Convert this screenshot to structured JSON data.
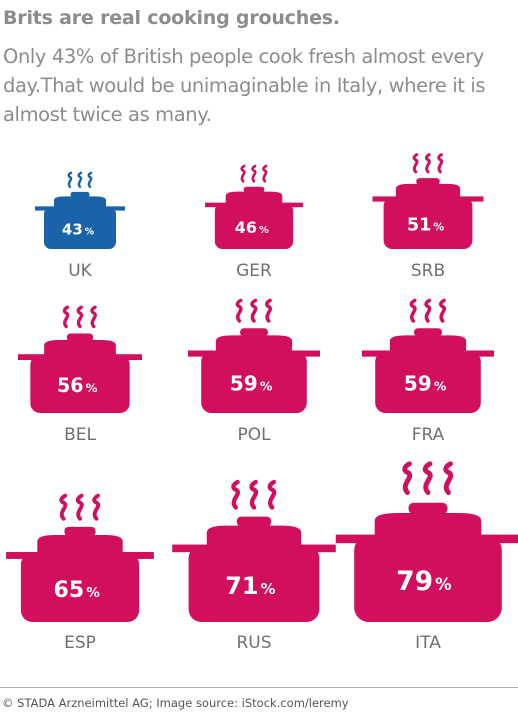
{
  "title": "Brits are real cooking grouches.",
  "subtitle": "Only 43% of British people cook fresh almost every day.That would be unimaginable in Italy, where it is almost twice as many.",
  "footer": "© STADA Arzneimittel AG; Image source: iStock.com/leremy",
  "colors": {
    "highlight": "#1a63a8",
    "default": "#d20f5f",
    "text": "#8c8c8c",
    "label": "#707070"
  },
  "icon": "steaming-cooking-pot-icon",
  "chart_data": {
    "type": "pictogram",
    "title": "Brits are real cooking grouches.",
    "unit": "%",
    "categories": [
      "UK",
      "GER",
      "SRB",
      "BEL",
      "POL",
      "FRA",
      "ESP",
      "RUS",
      "ITA"
    ],
    "values": [
      43,
      46,
      51,
      56,
      59,
      59,
      65,
      71,
      79
    ],
    "highlight": "UK"
  }
}
